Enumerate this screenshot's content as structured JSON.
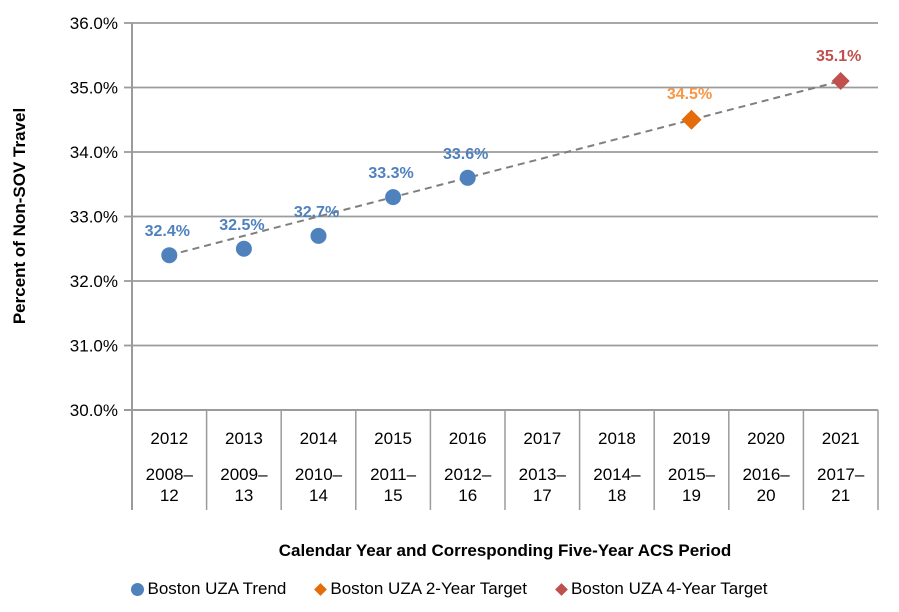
{
  "chart_data": {
    "type": "scatter",
    "title": "",
    "xlabel": "Calendar Year and Corresponding Five-Year ACS Period",
    "ylabel": "Percent of Non-SOV Travel",
    "ylim": [
      30.0,
      36.0
    ],
    "ytick_values": [
      30,
      31,
      32,
      33,
      34,
      35,
      36
    ],
    "ytick_labels": [
      "30.0%",
      "31.0%",
      "32.0%",
      "33.0%",
      "34.0%",
      "35.0%",
      "36.0%"
    ],
    "categories": [
      "2012",
      "2013",
      "2014",
      "2015",
      "2016",
      "2017",
      "2018",
      "2019",
      "2020",
      "2021"
    ],
    "acs_periods": [
      "2008–12",
      "2009–13",
      "2010–14",
      "2011–15",
      "2012–16",
      "2013–17",
      "2014–18",
      "2015–19",
      "2016–20",
      "2017–21"
    ],
    "grid": "horizontal",
    "legend_position": "bottom",
    "colors": {
      "grid": "#9B9B9B",
      "axis": "#9B9B9B",
      "trendline": "#7F7F7F",
      "tick_text": "#000000"
    },
    "series": [
      {
        "name": "Boston UZA Trend",
        "marker": "circle",
        "marker_size": 8,
        "color": "#4F81BD",
        "label_color": "#4F81BD",
        "points": [
          {
            "x": "2012",
            "y": 32.4,
            "label": "32.4%"
          },
          {
            "x": "2013",
            "y": 32.5,
            "label": "32.5%"
          },
          {
            "x": "2014",
            "y": 32.7,
            "label": "32.7%"
          },
          {
            "x": "2015",
            "y": 33.3,
            "label": "33.3%"
          },
          {
            "x": "2016",
            "y": 33.6,
            "label": "33.6%"
          }
        ]
      },
      {
        "name": "Boston UZA 2-Year Target",
        "marker": "diamond",
        "marker_size": 10,
        "color": "#E46C0A",
        "label_color": "#F79646",
        "points": [
          {
            "x": "2019",
            "y": 34.5,
            "label": "34.5%"
          }
        ]
      },
      {
        "name": "Boston UZA 4-Year Target",
        "marker": "diamond",
        "marker_size": 9,
        "color": "#C0504D",
        "label_color": "#C0504D",
        "points": [
          {
            "x": "2021",
            "y": 35.1,
            "label": "35.1%"
          }
        ]
      }
    ],
    "trendline": {
      "style": "dashed",
      "from": {
        "x": "2012",
        "y": 32.4
      },
      "to": {
        "x": "2021",
        "y": 35.1
      }
    }
  }
}
